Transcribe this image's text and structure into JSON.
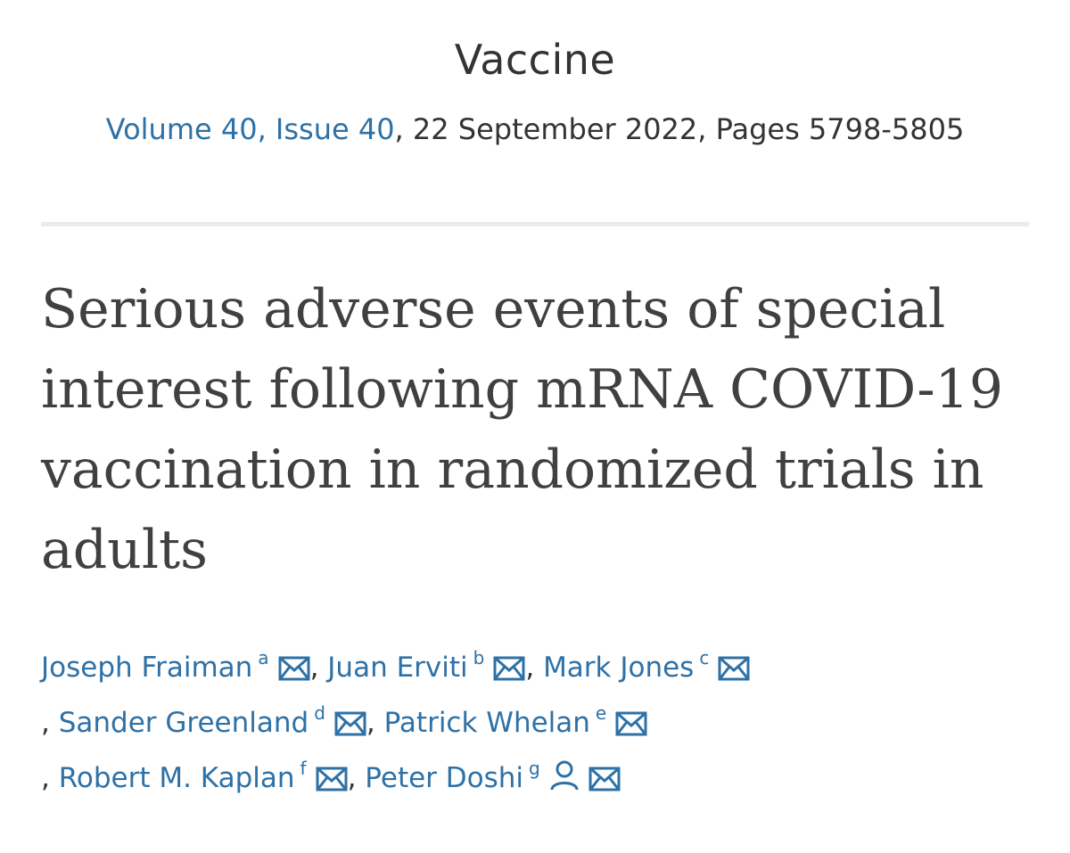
{
  "journal": "Vaccine",
  "issue": {
    "volume_issue": "Volume 40, Issue 40",
    "rest": ", 22 September 2022, Pages 5798-5805"
  },
  "title_lines": [
    "Serious adverse events of special",
    "interest following mRNA COVID-19",
    "vaccination in randomized trials in",
    "adults"
  ],
  "authors": [
    {
      "name": "Joseph Fraiman",
      "sup": "a"
    },
    {
      "name": "Juan Erviti",
      "sup": "b"
    },
    {
      "name": "Mark Jones",
      "sup": "c"
    },
    {
      "name": "Sander Greenland",
      "sup": "d"
    },
    {
      "name": "Patrick Whelan",
      "sup": "e"
    },
    {
      "name": "Robert M. Kaplan",
      "sup": "f"
    },
    {
      "name": "Peter Doshi",
      "sup": "g"
    }
  ],
  "separator": ",",
  "icons": {
    "email": "envelope-icon",
    "person": "person-icon"
  },
  "colors": {
    "link": "#2e71a6",
    "text": "#333333",
    "title": "#404040",
    "divider": "#ebebeb"
  }
}
